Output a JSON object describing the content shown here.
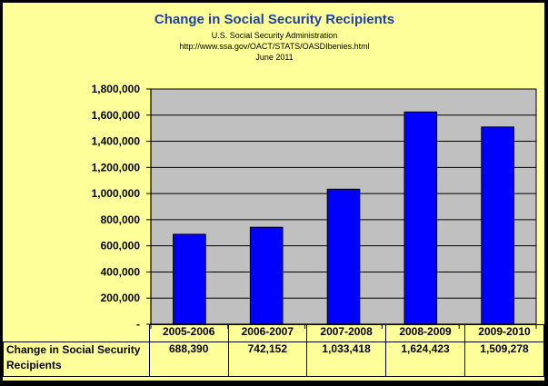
{
  "chart_data": {
    "type": "bar",
    "title": "Change in Social Security Recipients",
    "subtitle_lines": [
      "U.S. Social Security Administration",
      "http://www.ssa.gov/OACT/STATS/OASDIbenies.html",
      "June 2011"
    ],
    "categories": [
      "2005-2006",
      "2006-2007",
      "2007-2008",
      "2008-2009",
      "2009-2010"
    ],
    "series": [
      {
        "name": "Change in Social Security Recipients",
        "values": [
          688390,
          742152,
          1033418,
          1624423,
          1509278
        ],
        "value_labels": [
          "688,390",
          "742,152",
          "1,033,418",
          "1,624,423",
          "1,509,278"
        ],
        "color": "#0000ff"
      }
    ],
    "ylim": [
      0,
      1800000
    ],
    "yticks": [
      0,
      200000,
      400000,
      600000,
      800000,
      1000000,
      1200000,
      1400000,
      1600000,
      1800000
    ],
    "ytick_labels": [
      "-",
      "200,000",
      "400,000",
      "600,000",
      "800,000",
      "1,000,000",
      "1,200,000",
      "1,400,000",
      "1,600,000",
      "1,800,000"
    ],
    "grid": true,
    "legend": "data table below axis",
    "plot_background": "#c0c0c0",
    "page_background": "#ffff99"
  }
}
